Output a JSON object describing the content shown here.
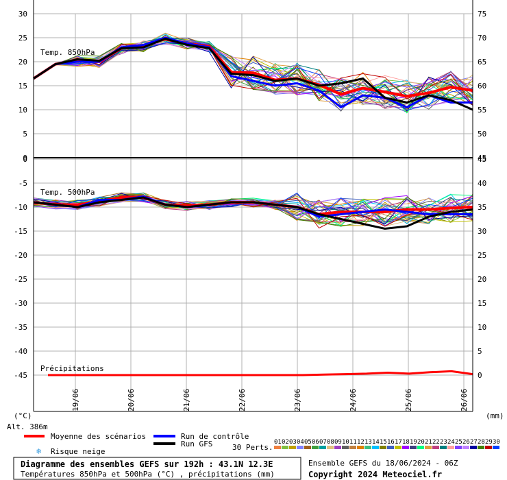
{
  "chart_data": [
    {
      "type": "line",
      "panel": "top",
      "title": "Temp. 850hPa",
      "ylim_left": [
        0,
        30
      ],
      "ylim_right": [
        45,
        75
      ],
      "yticks_left": [
        0,
        5,
        10,
        15,
        20,
        25,
        30
      ],
      "yticks_right": [
        45,
        50,
        55,
        60,
        65,
        70,
        75
      ],
      "grid": true,
      "series": [
        {
          "name": "Moyenne des scénarios",
          "color": "#ff0000",
          "values": [
            16.5,
            19.5,
            20.2,
            20,
            22.8,
            23.2,
            24.8,
            23.8,
            23.2,
            17.8,
            17.7,
            16.2,
            16.5,
            15.2,
            13.2,
            14.5,
            13.7,
            12.8,
            13.5,
            14.7,
            14.0
          ]
        },
        {
          "name": "Run de contrôle",
          "color": "#0000ff",
          "values": [
            16.5,
            19.5,
            20.0,
            20.0,
            23.0,
            23.5,
            25.0,
            23.8,
            23.0,
            17.0,
            16.0,
            15.0,
            15.5,
            14.0,
            10.5,
            13.0,
            12.5,
            10.5,
            13.0,
            11.5,
            11.5
          ]
        },
        {
          "name": "Run GFS",
          "color": "#000000",
          "values": [
            16.5,
            19.5,
            20.5,
            20.2,
            22.8,
            23.0,
            24.8,
            23.5,
            22.8,
            17.5,
            17.2,
            16.0,
            16.5,
            15.0,
            15.5,
            16.5,
            12.5,
            11.5,
            13.0,
            12.0,
            10.0
          ]
        }
      ]
    },
    {
      "type": "line",
      "panel": "bottom",
      "title": "Temp. 500hPa",
      "title_precip": "Précipitations",
      "ylim_left": [
        -45,
        0
      ],
      "ylim_right": [
        0,
        45
      ],
      "yticks_left": [
        -45,
        -40,
        -35,
        -30,
        -25,
        -20,
        -15,
        -10,
        -5,
        0
      ],
      "yticks_right": [
        0,
        5,
        10,
        15,
        20,
        25,
        30,
        35,
        40,
        45
      ],
      "grid": true,
      "series": [
        {
          "name": "Moyenne des scénarios",
          "color": "#ff0000",
          "values": [
            -9,
            -9.5,
            -9.5,
            -8.8,
            -8,
            -8,
            -9.5,
            -9.7,
            -9.5,
            -9.0,
            -9.0,
            -9.5,
            -10,
            -11.5,
            -11.0,
            -11.0,
            -11.0,
            -10.5,
            -10.5,
            -10.2,
            -10.0
          ]
        },
        {
          "name": "Run de contrôle",
          "color": "#0000ff",
          "values": [
            -9,
            -9.5,
            -10,
            -8.5,
            -8.5,
            -7.8,
            -9.5,
            -10,
            -9.5,
            -9.0,
            -9.0,
            -9.5,
            -10,
            -12.0,
            -11.5,
            -11.0,
            -10.5,
            -11.0,
            -11.5,
            -11.5,
            -11.5
          ]
        },
        {
          "name": "Run GFS",
          "color": "#000000",
          "values": [
            -9,
            -9.5,
            -10,
            -9,
            -8.5,
            -8,
            -9.5,
            -10,
            -9.5,
            -9.0,
            -9.0,
            -9.5,
            -10,
            -11.5,
            -12.5,
            -13.5,
            -14.5,
            -14,
            -12,
            -11,
            -10.5
          ]
        }
      ],
      "precip_mean": [
        0,
        0,
        0,
        0,
        0,
        0,
        0,
        0,
        0,
        0,
        0,
        0,
        0,
        0.1,
        0.2,
        0.3,
        0.5,
        0.3,
        0.6,
        0.8,
        0.2
      ]
    }
  ],
  "x_labels": [
    "19/06",
    "20/06",
    "21/06",
    "22/06",
    "23/06",
    "24/06",
    "25/06",
    "26/06"
  ],
  "units": {
    "left": "(°C)",
    "right": "(mm)"
  },
  "altitude": "Alt. 386m",
  "legend": {
    "mean": "Moyenne des scénarios",
    "control": "Run de contrôle",
    "gfs": "Run GFS",
    "snow": "Risque neige",
    "perts": "30 Perts.",
    "pert_numbers": [
      "01",
      "02",
      "03",
      "04",
      "05",
      "06",
      "07",
      "08",
      "09",
      "10",
      "11",
      "12",
      "13",
      "14",
      "15",
      "16",
      "17",
      "18",
      "19",
      "20",
      "21",
      "22",
      "23",
      "24",
      "25",
      "26",
      "27",
      "28",
      "29",
      "30"
    ],
    "pert_colors": [
      "#f08040",
      "#80c040",
      "#c0a000",
      "#8080ff",
      "#a06020",
      "#40a040",
      "#00a0a0",
      "#e0c080",
      "#a040c0",
      "#606060",
      "#c08040",
      "#e08000",
      "#40c080",
      "#00c0ff",
      "#808000",
      "#4060c0",
      "#c0c000",
      "#a000ff",
      "#404080",
      "#00ff80",
      "#e0a040",
      "#c04080",
      "#008080",
      "#ffa0a0",
      "#8040ff",
      "#c080ff",
      "#0000a0",
      "#408000",
      "#c00000",
      "#0040ff"
    ]
  },
  "footer": {
    "title": "Diagramme des ensembles GEFS sur 192h : 43.1N 12.3E",
    "subtitle": "Températures 850hPa et 500hPa (°C) , précipitations (mm)",
    "run": "Ensemble GEFS du 18/06/2024 - 06Z",
    "copyright": "Copyright 2024 Meteociel.fr"
  }
}
